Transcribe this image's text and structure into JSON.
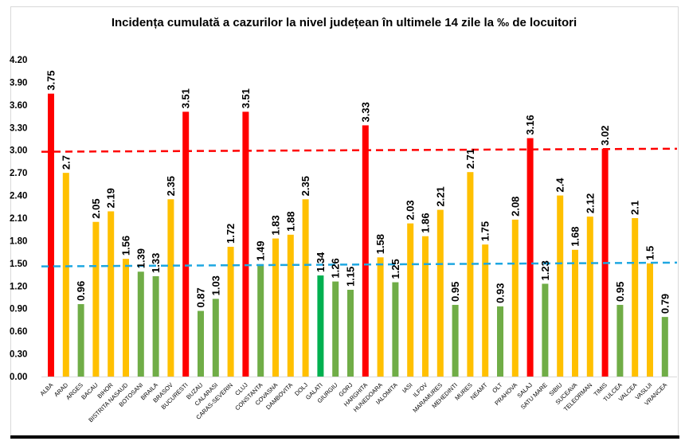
{
  "chart_data": {
    "type": "bar",
    "title": "Incidența cumulată a cazurilor la nivel județean în ultimele 14 zile la ‰ de locuitori",
    "xlabel": "",
    "ylabel": "",
    "ylim": [
      0,
      4.2
    ],
    "yticks": [
      "0.00",
      "0.30",
      "0.60",
      "0.90",
      "1.20",
      "1.50",
      "1.80",
      "2.10",
      "2.40",
      "2.70",
      "3.00",
      "3.30",
      "3.60",
      "3.90",
      "4.20"
    ],
    "grid": false,
    "legend": "none",
    "categories": [
      "ALBA",
      "ARAD",
      "ARGES",
      "BACAU",
      "BIHOR",
      "BISTRITA NASAUD",
      "BOTOSANI",
      "BRAILA",
      "BRASOV",
      "BUCURESTI",
      "BUZAU",
      "CALARASI",
      "CARAS-SEVERIN",
      "CLUJ",
      "CONSTANTA",
      "COVASNA",
      "DAMBOVITA",
      "DOLJ",
      "GALATI",
      "GIURGIU",
      "GORJ",
      "HARGHITA",
      "HUNEDOARA",
      "IALOMITA",
      "IASI",
      "ILFOV",
      "MARAMURES",
      "MEHEDINTI",
      "MURES",
      "NEAMT",
      "OLT",
      "PRAHOVA",
      "SALAJ",
      "SATU MARE",
      "SIBIU",
      "SUCEAVA",
      "TELEORMAN",
      "TIMIS",
      "TULCEA",
      "VALCEA",
      "VASLUI",
      "VRANCEA"
    ],
    "values": [
      3.75,
      2.7,
      0.96,
      2.05,
      2.19,
      1.56,
      1.39,
      1.33,
      2.35,
      3.51,
      0.87,
      1.03,
      1.72,
      3.51,
      1.49,
      1.83,
      1.88,
      2.35,
      1.34,
      1.26,
      1.15,
      3.33,
      1.58,
      1.25,
      2.03,
      1.86,
      2.21,
      0.95,
      2.71,
      1.75,
      0.93,
      2.08,
      3.16,
      1.23,
      2.4,
      1.68,
      2.12,
      3.02,
      0.95,
      2.1,
      1.5,
      0.79
    ],
    "highlight_category": "GALATI",
    "colors": {
      "high": "#FF0000",
      "medium": "#FFC000",
      "low": "#70AD47",
      "highlight": "#00B050"
    },
    "thresholds": {
      "high": 3.0,
      "medium": 1.5
    },
    "reference_lines": [
      {
        "color": "#FF0000",
        "style": "dashed",
        "start": 2.98,
        "end": 3.02
      },
      {
        "color": "#1EA7E1",
        "style": "dashed",
        "start": 1.46,
        "end": 1.51
      }
    ]
  }
}
